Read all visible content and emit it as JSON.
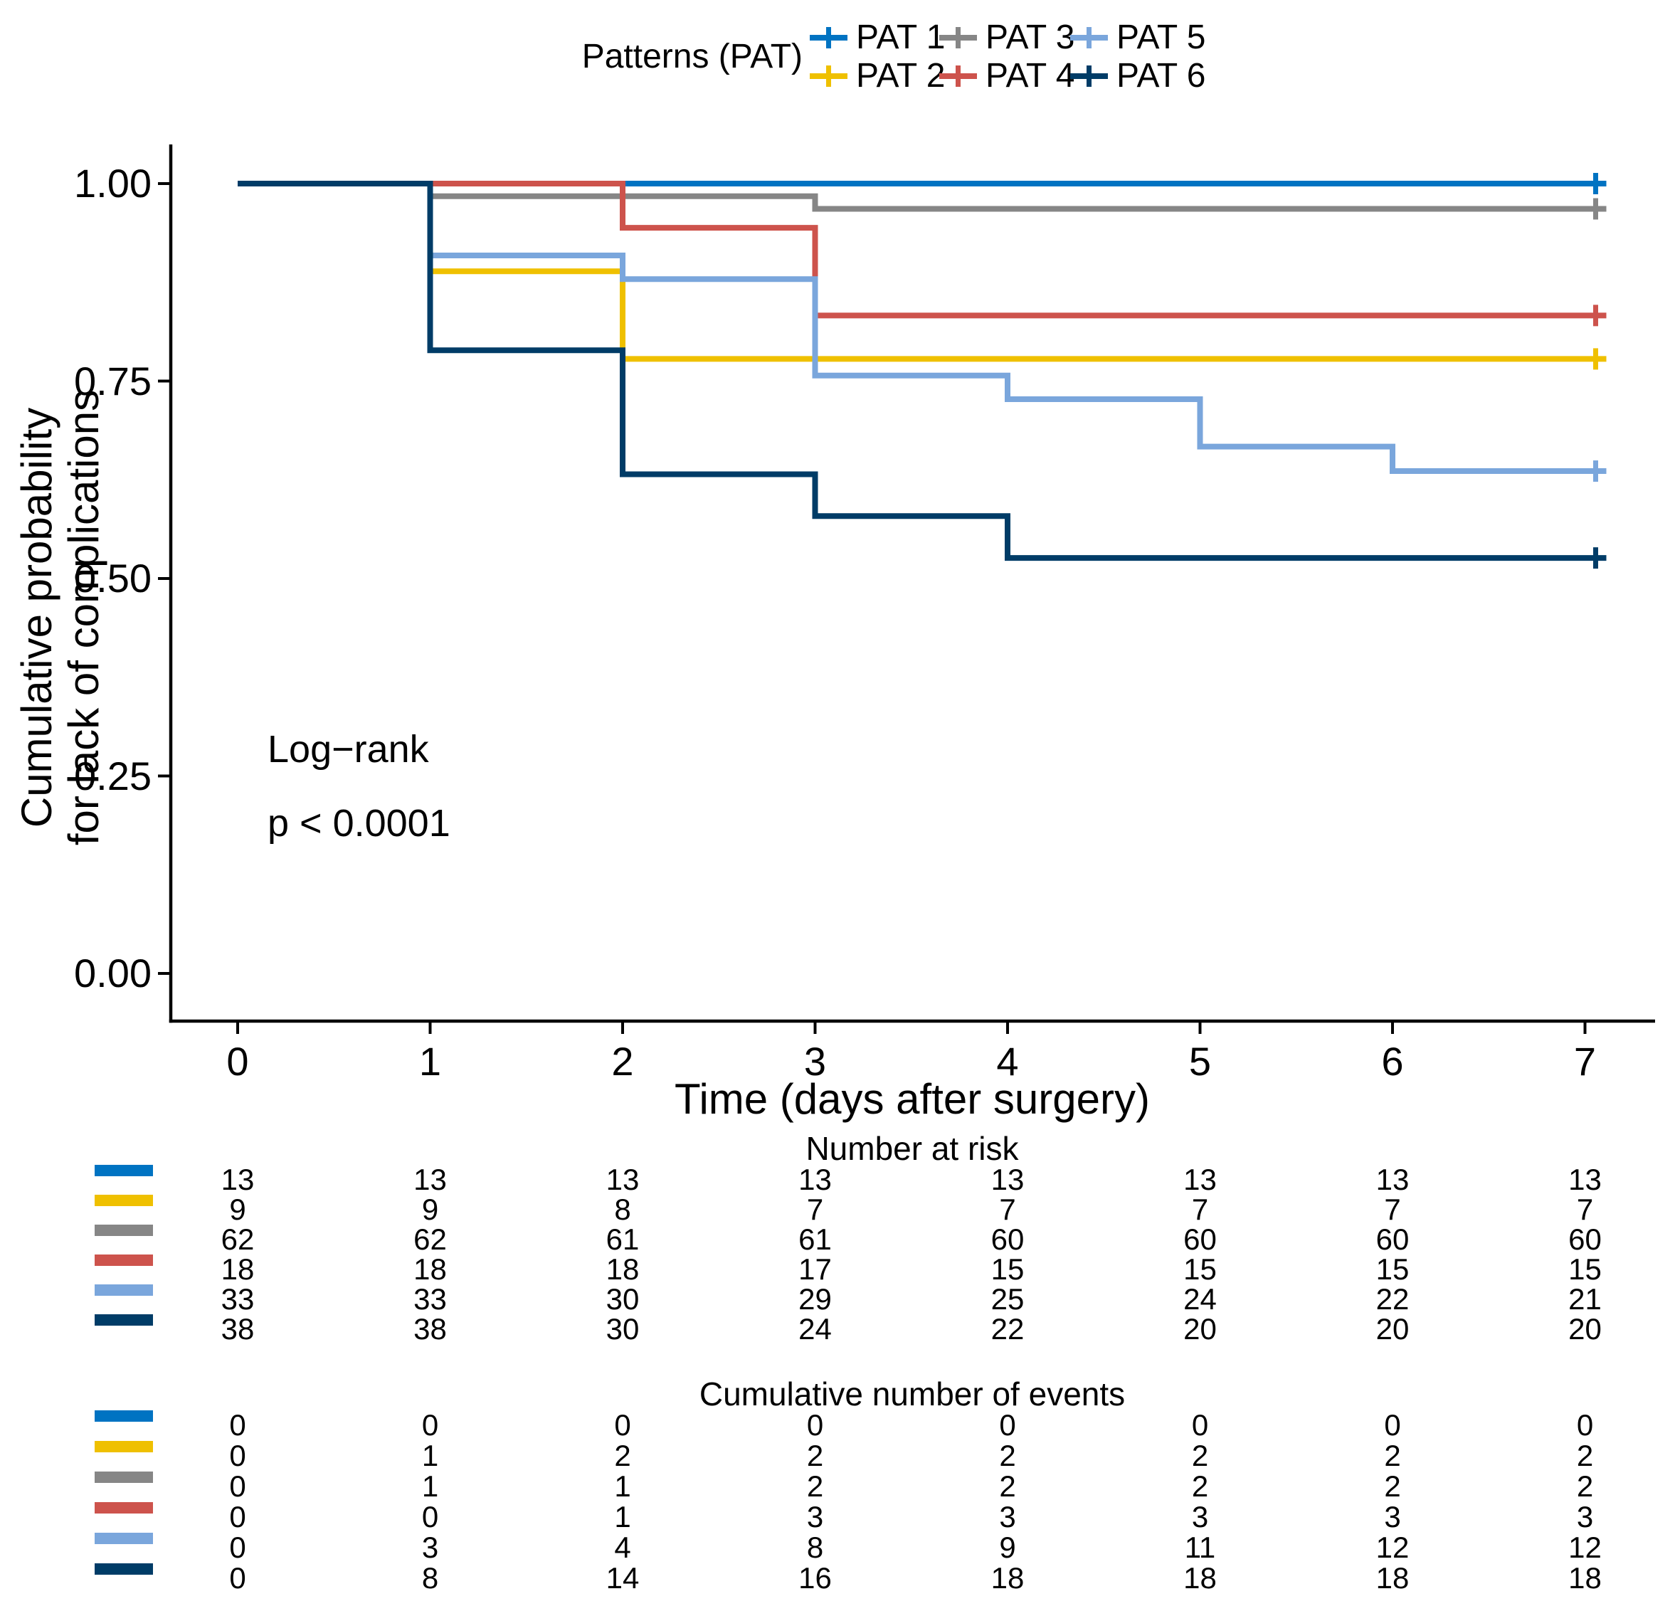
{
  "legend": {
    "title": "Patterns (PAT)",
    "items": [
      {
        "label": "PAT 1",
        "color": "#0073C2"
      },
      {
        "label": "PAT 2",
        "color": "#EFC000"
      },
      {
        "label": "PAT 3",
        "color": "#868686"
      },
      {
        "label": "PAT 4",
        "color": "#CD534C"
      },
      {
        "label": "PAT 5",
        "color": "#7AA6DC"
      },
      {
        "label": "PAT 6",
        "color": "#003C67"
      }
    ]
  },
  "chart_data": {
    "type": "line",
    "subtype": "kaplan-meier-step",
    "title": "",
    "xlabel": "Time (days after surgery)",
    "ylabel": "Cumulative probability\nfor lack of complications",
    "xlim": [
      0,
      7.35
    ],
    "ylim": [
      0,
      1.05
    ],
    "grid": false,
    "legend_position": "top",
    "x_ticks": [
      0,
      1,
      2,
      3,
      4,
      5,
      6,
      7
    ],
    "y_ticks": [
      {
        "label": "1.00",
        "value": 1.0
      },
      {
        "label": "0.75",
        "value": 0.75
      },
      {
        "label": "0.50",
        "value": 0.5
      },
      {
        "label": "0.25",
        "value": 0.25
      },
      {
        "label": "0.00",
        "value": 0.0
      }
    ],
    "annotations": [
      "Log−rank",
      "p < 0.0001"
    ],
    "series": [
      {
        "name": "PAT 1",
        "color": "#0073C2",
        "end_censor": true,
        "steps": [
          [
            0,
            1.0
          ],
          [
            7,
            1.0
          ]
        ]
      },
      {
        "name": "PAT 2",
        "color": "#EFC000",
        "end_censor": true,
        "steps": [
          [
            0,
            1.0
          ],
          [
            1,
            1.0
          ],
          [
            1,
            0.889
          ],
          [
            2,
            0.889
          ],
          [
            2,
            0.778
          ],
          [
            7,
            0.778
          ]
        ]
      },
      {
        "name": "PAT 3",
        "color": "#868686",
        "end_censor": true,
        "steps": [
          [
            0,
            1.0
          ],
          [
            1,
            1.0
          ],
          [
            1,
            0.984
          ],
          [
            3,
            0.984
          ],
          [
            3,
            0.968
          ],
          [
            7,
            0.968
          ]
        ]
      },
      {
        "name": "PAT 4",
        "color": "#CD534C",
        "end_censor": true,
        "steps": [
          [
            0,
            1.0
          ],
          [
            2,
            1.0
          ],
          [
            2,
            0.944
          ],
          [
            3,
            0.944
          ],
          [
            3,
            0.833
          ],
          [
            7,
            0.833
          ]
        ]
      },
      {
        "name": "PAT 5",
        "color": "#7AA6DC",
        "end_censor": true,
        "steps": [
          [
            0,
            1.0
          ],
          [
            1,
            1.0
          ],
          [
            1,
            0.909
          ],
          [
            2,
            0.909
          ],
          [
            2,
            0.879
          ],
          [
            3,
            0.879
          ],
          [
            3,
            0.757
          ],
          [
            4,
            0.757
          ],
          [
            4,
            0.727
          ],
          [
            5,
            0.727
          ],
          [
            5,
            0.667
          ],
          [
            6,
            0.667
          ],
          [
            6,
            0.636
          ],
          [
            7,
            0.636
          ]
        ]
      },
      {
        "name": "PAT 6",
        "color": "#003C67",
        "end_censor": true,
        "steps": [
          [
            0,
            1.0
          ],
          [
            1,
            1.0
          ],
          [
            1,
            0.789
          ],
          [
            2,
            0.789
          ],
          [
            2,
            0.632
          ],
          [
            3,
            0.632
          ],
          [
            3,
            0.579
          ],
          [
            4,
            0.579
          ],
          [
            4,
            0.526
          ],
          [
            7,
            0.526
          ]
        ]
      }
    ]
  },
  "risk_table": {
    "title": "Number at risk",
    "time_points": [
      0,
      1,
      2,
      3,
      4,
      5,
      6,
      7
    ],
    "rows": [
      {
        "name": "PAT 1",
        "color": "#0073C2",
        "values": [
          13,
          13,
          13,
          13,
          13,
          13,
          13,
          13
        ]
      },
      {
        "name": "PAT 2",
        "color": "#EFC000",
        "values": [
          9,
          9,
          8,
          7,
          7,
          7,
          7,
          7
        ]
      },
      {
        "name": "PAT 3",
        "color": "#868686",
        "values": [
          62,
          62,
          61,
          61,
          60,
          60,
          60,
          60
        ]
      },
      {
        "name": "PAT 4",
        "color": "#CD534C",
        "values": [
          18,
          18,
          18,
          17,
          15,
          15,
          15,
          15
        ]
      },
      {
        "name": "PAT 5",
        "color": "#7AA6DC",
        "values": [
          33,
          33,
          30,
          29,
          25,
          24,
          22,
          21
        ]
      },
      {
        "name": "PAT 6",
        "color": "#003C67",
        "values": [
          38,
          38,
          30,
          24,
          22,
          20,
          20,
          20
        ]
      }
    ]
  },
  "events_table": {
    "title": "Cumulative number of events",
    "time_points": [
      0,
      1,
      2,
      3,
      4,
      5,
      6,
      7
    ],
    "rows": [
      {
        "name": "PAT 1",
        "color": "#0073C2",
        "values": [
          0,
          0,
          0,
          0,
          0,
          0,
          0,
          0
        ]
      },
      {
        "name": "PAT 2",
        "color": "#EFC000",
        "values": [
          0,
          1,
          2,
          2,
          2,
          2,
          2,
          2
        ]
      },
      {
        "name": "PAT 3",
        "color": "#868686",
        "values": [
          0,
          1,
          1,
          2,
          2,
          2,
          2,
          2
        ]
      },
      {
        "name": "PAT 4",
        "color": "#CD534C",
        "values": [
          0,
          0,
          1,
          3,
          3,
          3,
          3,
          3
        ]
      },
      {
        "name": "PAT 5",
        "color": "#7AA6DC",
        "values": [
          0,
          3,
          4,
          8,
          9,
          11,
          12,
          12
        ]
      },
      {
        "name": "PAT 6",
        "color": "#003C67",
        "values": [
          0,
          8,
          14,
          16,
          18,
          18,
          18,
          18
        ]
      }
    ]
  }
}
